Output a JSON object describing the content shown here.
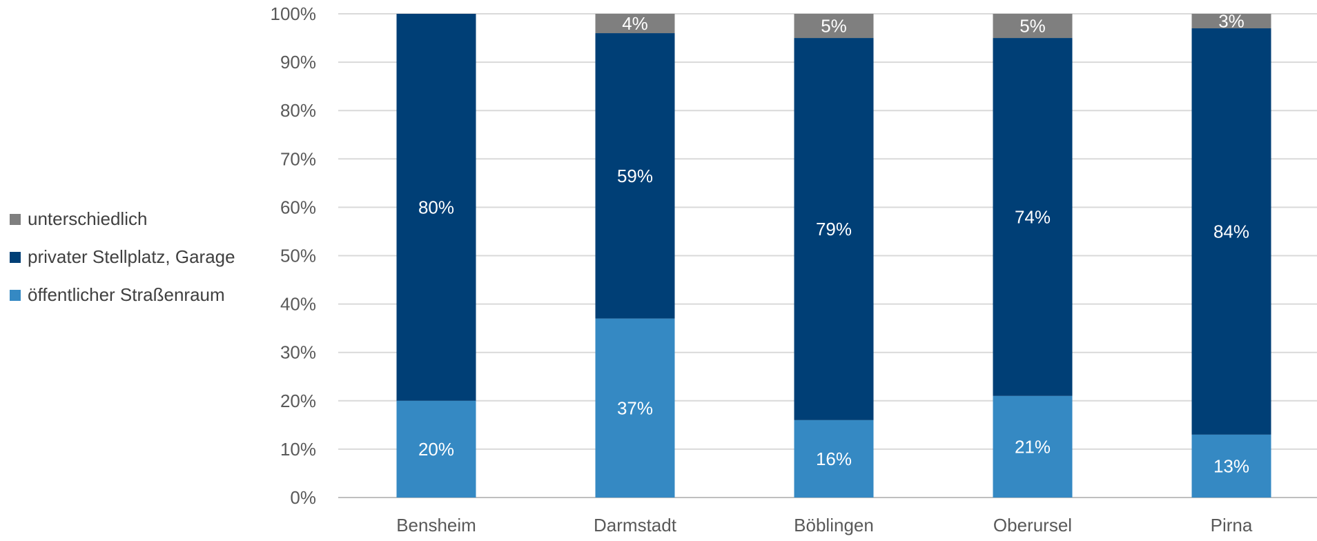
{
  "chart_data": {
    "type": "bar",
    "stacked": true,
    "categories": [
      "Bensheim",
      "Darmstadt",
      "Böblingen",
      "Oberursel",
      "Pirna"
    ],
    "series": [
      {
        "name": "öffentlicher Straßenraum",
        "color": "#3589c3",
        "values": [
          20,
          37,
          16,
          21,
          13
        ],
        "labels": [
          "20%",
          "37%",
          "16%",
          "21%",
          "13%"
        ]
      },
      {
        "name": "privater Stellplatz, Garage",
        "color": "#003f76",
        "values": [
          80,
          59,
          79,
          74,
          84
        ],
        "labels": [
          "80%",
          "59%",
          "79%",
          "74%",
          "84%"
        ]
      },
      {
        "name": "unterschiedlich",
        "color": "#7f7f7f",
        "values": [
          0,
          4,
          5,
          5,
          3
        ],
        "labels": [
          "",
          "4%",
          "5%",
          "5%",
          "3%"
        ]
      }
    ],
    "ylim": [
      0,
      100
    ],
    "yticks": [
      "0%",
      "10%",
      "20%",
      "30%",
      "40%",
      "50%",
      "60%",
      "70%",
      "80%",
      "90%",
      "100%"
    ],
    "grid": true,
    "legend": "left"
  },
  "legend": {
    "items": [
      {
        "label": "unterschiedlich",
        "color": "#7f7f7f"
      },
      {
        "label": "privater Stellplatz, Garage",
        "color": "#003f76"
      },
      {
        "label": "öffentlicher Straßenraum",
        "color": "#3589c3"
      }
    ]
  }
}
